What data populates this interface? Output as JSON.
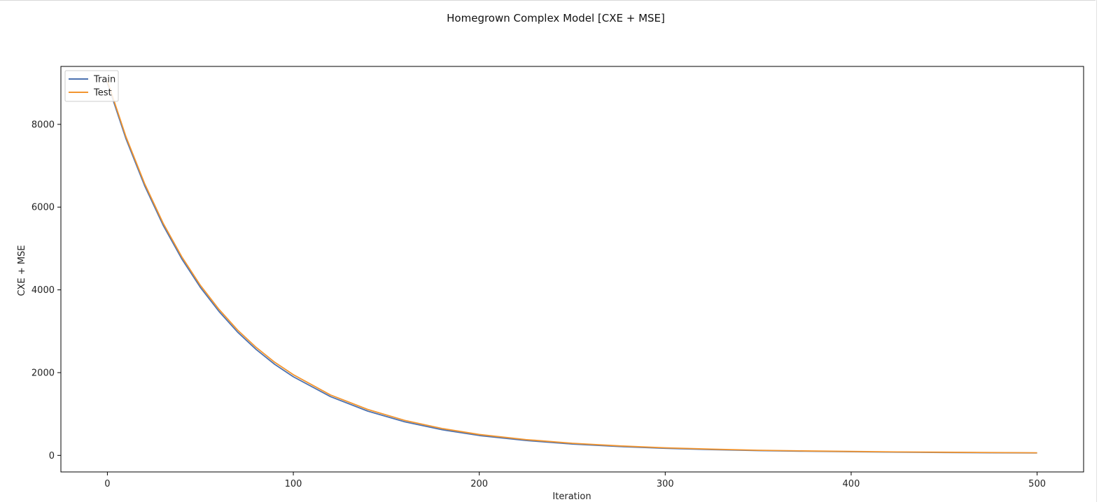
{
  "chart_data": {
    "type": "line",
    "title": "Homegrown Complex Model [CXE + MSE]",
    "xlabel": "Iteration",
    "ylabel": "CXE + MSE",
    "xlim": [
      -25,
      525
    ],
    "ylim": [
      -400,
      9400
    ],
    "xticks": [
      0,
      100,
      200,
      300,
      400,
      500
    ],
    "yticks": [
      0,
      2000,
      4000,
      6000,
      8000
    ],
    "grid": false,
    "legend_position": "upper-left",
    "colors": {
      "train": "#4c72b0",
      "test": "#f2952f"
    },
    "series": [
      {
        "name": "Train",
        "x": [
          0,
          10,
          20,
          30,
          40,
          50,
          60,
          70,
          80,
          90,
          100,
          120,
          140,
          160,
          180,
          200,
          225,
          250,
          275,
          300,
          325,
          350,
          375,
          400,
          425,
          450,
          475,
          500
        ],
        "values": [
          9000,
          7650,
          6520,
          5560,
          4750,
          4060,
          3480,
          2980,
          2560,
          2200,
          1900,
          1420,
          1070,
          810,
          620,
          480,
          360,
          275,
          215,
          170,
          140,
          115,
          100,
          88,
          78,
          70,
          64,
          58
        ]
      },
      {
        "name": "Test",
        "x": [
          0,
          10,
          20,
          30,
          40,
          50,
          60,
          70,
          80,
          90,
          100,
          120,
          140,
          160,
          180,
          200,
          225,
          250,
          275,
          300,
          325,
          350,
          375,
          400,
          425,
          450,
          475,
          500
        ],
        "values": [
          9050,
          7700,
          6570,
          5610,
          4800,
          4110,
          3530,
          3030,
          2610,
          2250,
          1950,
          1460,
          1110,
          845,
          650,
          505,
          382,
          293,
          230,
          183,
          150,
          124,
          108,
          95,
          84,
          76,
          69,
          63
        ]
      }
    ]
  }
}
